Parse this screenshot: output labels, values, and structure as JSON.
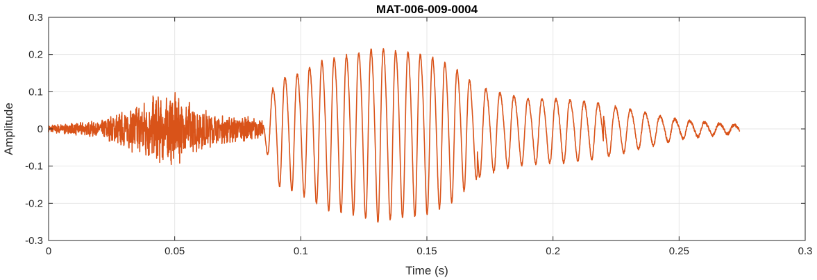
{
  "chart_data": {
    "type": "line",
    "title": "MAT-006-009-0004",
    "xlabel": "Time (s)",
    "ylabel": "Amplitude",
    "xlim": [
      0,
      0.3
    ],
    "ylim": [
      -0.3,
      0.3
    ],
    "xticks": [
      0,
      0.05,
      0.1,
      0.15,
      0.2,
      0.25,
      0.3
    ],
    "xtick_labels": [
      "0",
      "0.05",
      "0.1",
      "0.15",
      "0.2",
      "0.25",
      "0.3"
    ],
    "yticks": [
      -0.3,
      -0.2,
      -0.1,
      0,
      0.1,
      0.2,
      0.3
    ],
    "ytick_labels": [
      "-0.3",
      "-0.2",
      "-0.1",
      "0",
      "0.1",
      "0.2",
      "0.3"
    ],
    "grid": true,
    "line_color": "#D95319",
    "series": [
      {
        "x_start": 0,
        "x_end": 0.274,
        "sampling_note": "waveform samples approximated from the plotted signal envelope",
        "envelope": [
          {
            "t": 0.0,
            "amp": 0.01
          },
          {
            "t": 0.01,
            "amp": 0.015
          },
          {
            "t": 0.02,
            "amp": 0.02
          },
          {
            "t": 0.03,
            "amp": 0.045
          },
          {
            "t": 0.04,
            "amp": 0.08
          },
          {
            "t": 0.05,
            "amp": 0.09
          },
          {
            "t": 0.06,
            "amp": 0.05
          },
          {
            "t": 0.07,
            "amp": 0.035
          },
          {
            "t": 0.08,
            "amp": 0.03
          },
          {
            "t": 0.085,
            "amp": 0.02
          },
          {
            "t": 0.09,
            "amp": 0.14
          },
          {
            "t": 0.1,
            "amp": 0.16
          },
          {
            "t": 0.11,
            "amp": 0.2
          },
          {
            "t": 0.12,
            "amp": 0.21
          },
          {
            "t": 0.13,
            "amp": 0.23
          },
          {
            "t": 0.14,
            "amp": 0.22
          },
          {
            "t": 0.15,
            "amp": 0.21
          },
          {
            "t": 0.16,
            "amp": 0.18
          },
          {
            "t": 0.17,
            "amp": 0.12
          },
          {
            "t": 0.18,
            "amp": 0.1
          },
          {
            "t": 0.19,
            "amp": 0.085
          },
          {
            "t": 0.2,
            "amp": 0.085
          },
          {
            "t": 0.21,
            "amp": 0.08
          },
          {
            "t": 0.22,
            "amp": 0.07
          },
          {
            "t": 0.23,
            "amp": 0.055
          },
          {
            "t": 0.24,
            "amp": 0.04
          },
          {
            "t": 0.25,
            "amp": 0.025
          },
          {
            "t": 0.26,
            "amp": 0.018
          },
          {
            "t": 0.27,
            "amp": 0.012
          },
          {
            "t": 0.274,
            "amp": 0.01
          }
        ]
      }
    ]
  }
}
